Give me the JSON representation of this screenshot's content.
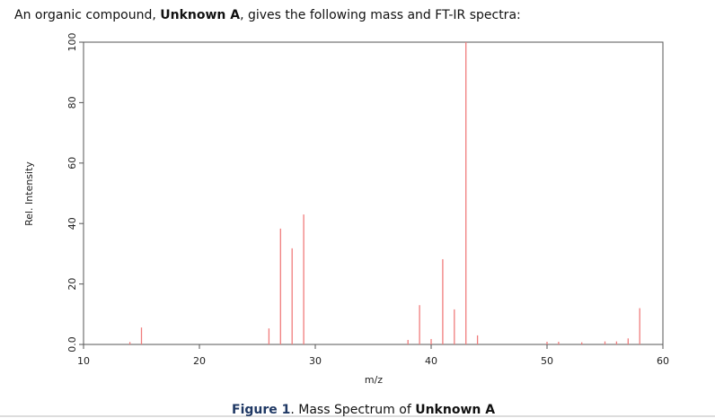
{
  "intro": {
    "before": "An organic compound, ",
    "bold": "Unknown A",
    "after": ", gives the following mass and FT-IR spectra:"
  },
  "chart_data": {
    "type": "stem",
    "xlabel": "m/z",
    "ylabel": "Rel. Intensity",
    "color": "#f07c7c",
    "x": [
      14,
      15,
      26,
      27,
      28,
      29,
      38,
      39,
      40,
      41,
      42,
      43,
      44,
      50,
      51,
      53,
      55,
      56,
      57,
      58
    ],
    "values": [
      0.8,
      5.6,
      5.3,
      38.3,
      31.8,
      43,
      1.5,
      13,
      1.8,
      28.2,
      11.6,
      100,
      3,
      0.9,
      0.9,
      0.7,
      1,
      1,
      2,
      12
    ],
    "xlim": [
      10,
      60
    ],
    "ylim": [
      0,
      100
    ],
    "xticks": [
      10,
      20,
      30,
      40,
      50,
      60
    ],
    "yticks": [
      {
        "value": 0,
        "label": "0.0"
      },
      20,
      40,
      60,
      80,
      100
    ]
  },
  "caption": {
    "figure": "Figure 1",
    "middle": ". Mass Spectrum of ",
    "bold": "Unknown A"
  }
}
